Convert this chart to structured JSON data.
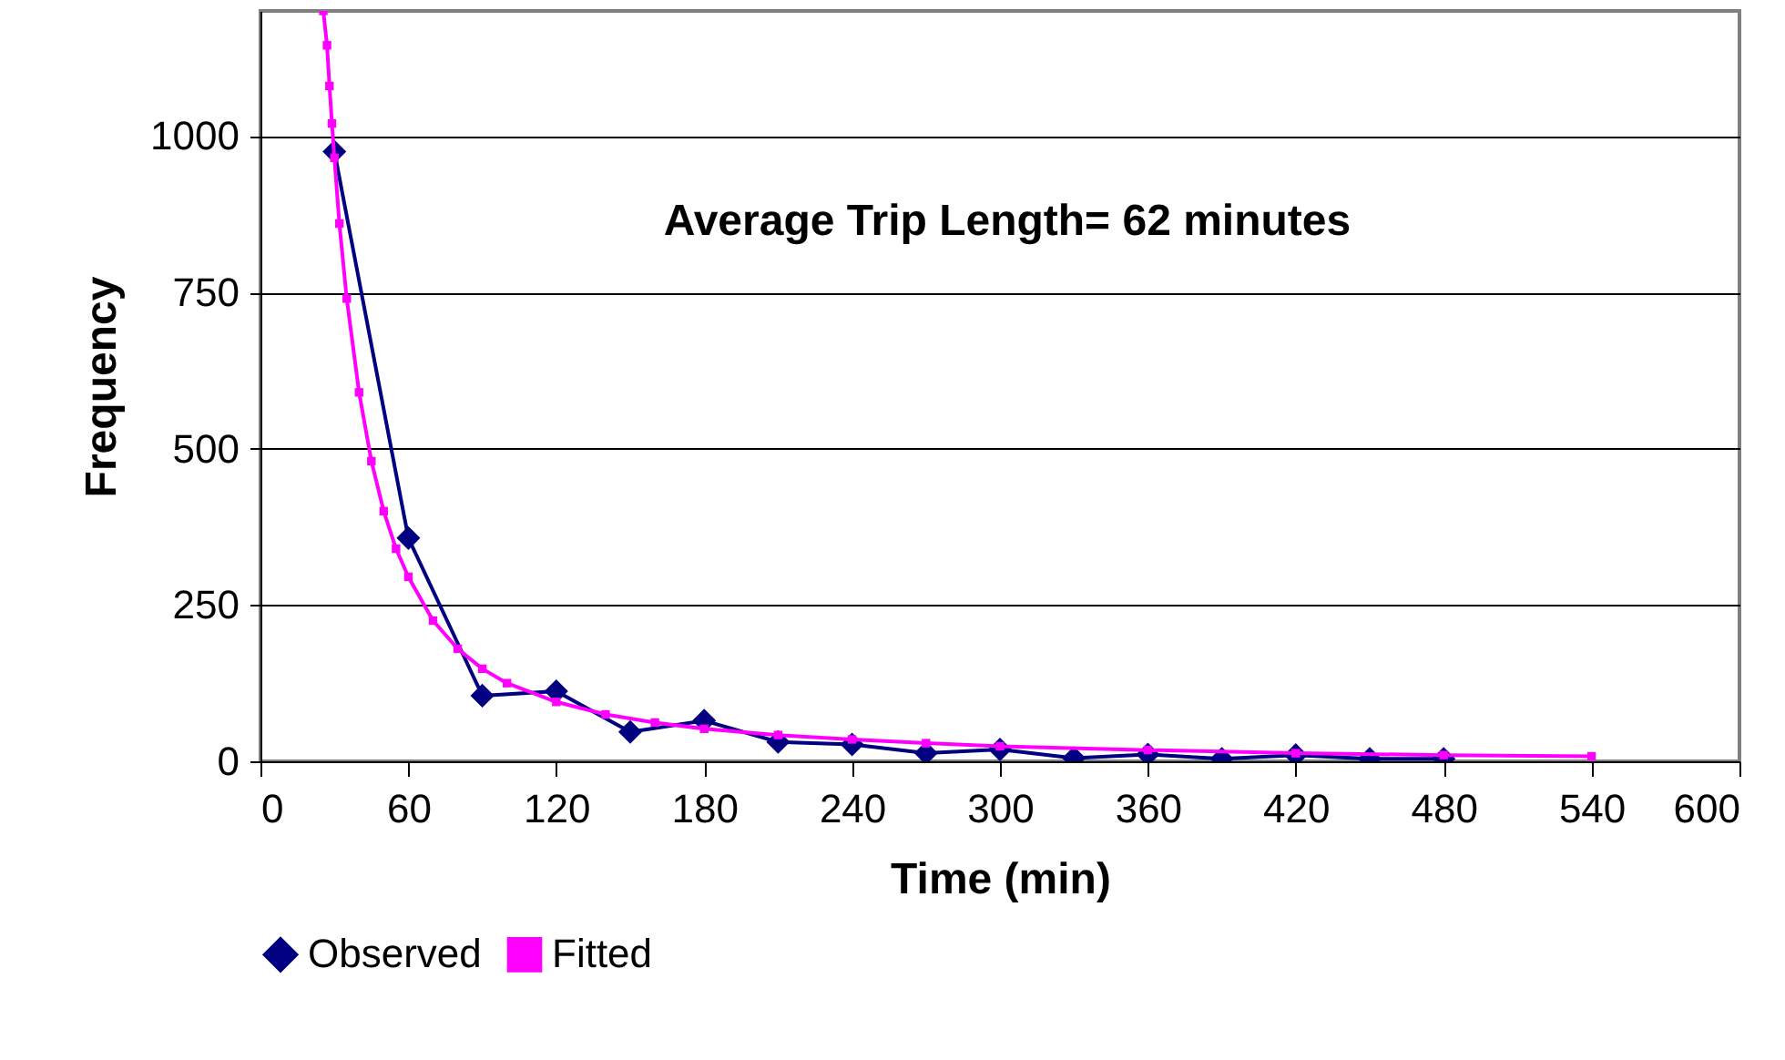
{
  "chart_data": {
    "type": "line",
    "xlabel": "Time (min)",
    "ylabel": "Frequency",
    "annotations": [
      "Average Trip Length= 62 minutes"
    ],
    "xlim": [
      0,
      600
    ],
    "xticks": [
      0,
      60,
      120,
      180,
      240,
      300,
      360,
      420,
      480,
      540,
      600
    ],
    "ylim": [
      0,
      1200
    ],
    "yticks": [
      0,
      250,
      500,
      750,
      1000
    ],
    "grid": "y",
    "legend": "bottom",
    "series": [
      {
        "name": "Observed",
        "color": "#000080",
        "marker": "diamond",
        "line_style": "solid",
        "x": [
          30,
          60,
          90,
          120,
          150,
          180,
          210,
          240,
          270,
          300,
          330,
          360,
          390,
          420,
          450,
          480
        ],
        "values": [
          975,
          357,
          105,
          112,
          47,
          65,
          31,
          27,
          13,
          19,
          5,
          11,
          4,
          10,
          4,
          4
        ]
      },
      {
        "name": "Fitted",
        "color": "#ff00ff",
        "marker": "square",
        "line_style": "solid",
        "x": [
          25.5,
          27,
          28,
          29,
          30,
          32,
          35,
          40,
          45,
          50,
          55,
          60,
          70,
          80,
          90,
          100,
          120,
          140,
          160,
          180,
          210,
          240,
          270,
          300,
          360,
          420,
          480,
          540
        ],
        "values": [
          1200,
          1145,
          1080,
          1020,
          965,
          860,
          740,
          590,
          480,
          400,
          340,
          295,
          225,
          180,
          148,
          125,
          95,
          75,
          62,
          52,
          42,
          35,
          29,
          24,
          18,
          13,
          10,
          8
        ]
      }
    ]
  }
}
